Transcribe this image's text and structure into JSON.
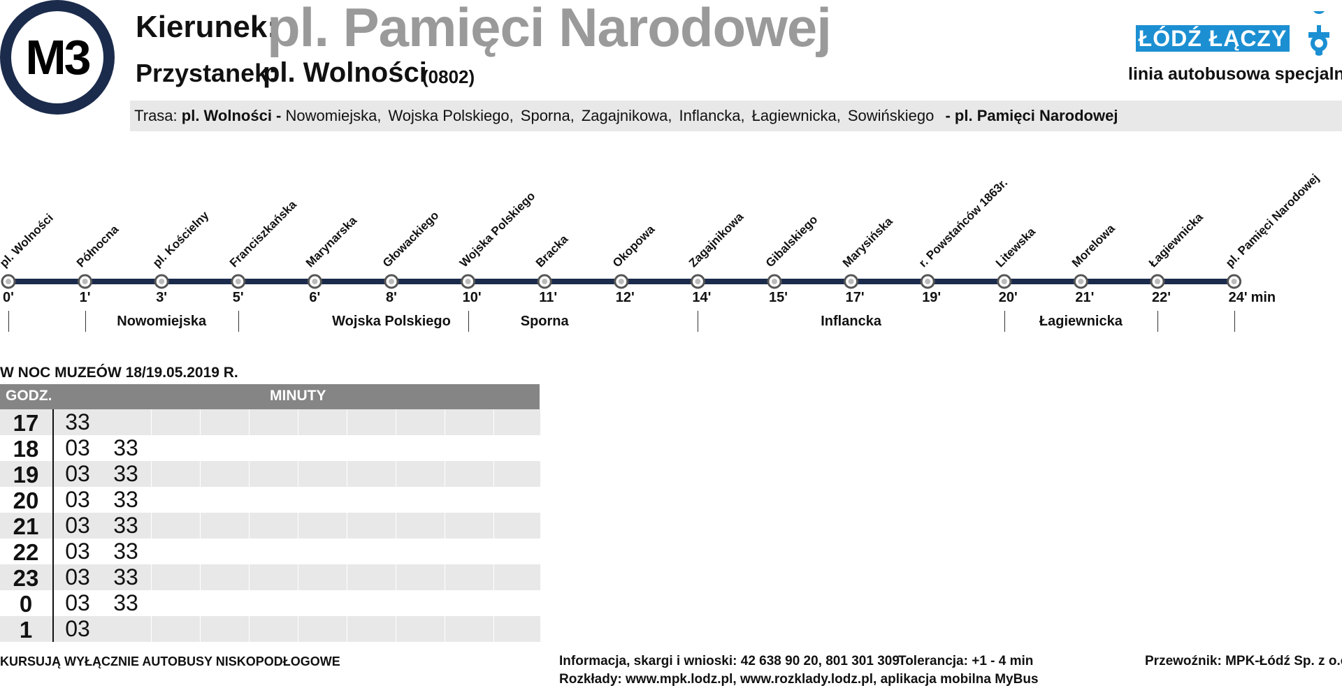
{
  "line": "M3",
  "header": {
    "direction_label": "Kierunek:",
    "direction_value": "pl. Pamięci Narodowej",
    "stop_label": "Przystanek:",
    "stop_value": "pl. Wolności",
    "stop_code": "(0802)"
  },
  "brand": {
    "logo_text": "ŁÓDŹ ŁĄCZY",
    "subtitle": "linia autobusowa specjalna",
    "accent": "#1b8fd2",
    "badge_color": "#1b2b4c"
  },
  "route": {
    "label": "Trasa:",
    "start": "pl. Wolności -",
    "streets": [
      "Nowomiejska,",
      "Wojska Polskiego,",
      "Sporna,",
      "Zagajnikowa,",
      "Inflancka,",
      "Łagiewnicka,",
      "Sowińskiego"
    ],
    "end": "- pl. Pamięci Narodowej"
  },
  "stops": [
    {
      "name": "pl. Wolności",
      "time": "0'"
    },
    {
      "name": "Północna",
      "time": "1'"
    },
    {
      "name": "pl. Kościelny",
      "time": "3'"
    },
    {
      "name": "Franciszkańska",
      "time": "5'"
    },
    {
      "name": "Marynarska",
      "time": "6'"
    },
    {
      "name": "Głowackiego",
      "time": "8'"
    },
    {
      "name": "Wojska Polskiego",
      "time": "10'"
    },
    {
      "name": "Bracka",
      "time": "11'"
    },
    {
      "name": "Okopowa",
      "time": "12'"
    },
    {
      "name": "Zagajnikowa",
      "time": "14'"
    },
    {
      "name": "Gibalskiego",
      "time": "15'"
    },
    {
      "name": "Marysińska",
      "time": "17'"
    },
    {
      "name": "r. Powstańców 1863r.",
      "time": "19'"
    },
    {
      "name": "Litewska",
      "time": "20'"
    },
    {
      "name": "Morelowa",
      "time": "21'"
    },
    {
      "name": "Łagiewnicka",
      "time": "22'"
    },
    {
      "name": "pl. Pamięci Narodowej",
      "time": "24'"
    }
  ],
  "time_unit": "min",
  "street_segments": [
    "Nowomiejska",
    "Wojska Polskiego",
    "Sporna",
    "Inflancka",
    "Łagiewnicka"
  ],
  "timetable": {
    "title": "W NOC MUZEÓW 18/19.05.2019 R.",
    "hour_header": "GODZ.",
    "minutes_header": "MINUTY",
    "rows": [
      {
        "hour": "17",
        "minutes": [
          "33"
        ]
      },
      {
        "hour": "18",
        "minutes": [
          "03",
          "33"
        ]
      },
      {
        "hour": "19",
        "minutes": [
          "03",
          "33"
        ]
      },
      {
        "hour": "20",
        "minutes": [
          "03",
          "33"
        ]
      },
      {
        "hour": "21",
        "minutes": [
          "03",
          "33"
        ]
      },
      {
        "hour": "22",
        "minutes": [
          "03",
          "33"
        ]
      },
      {
        "hour": "23",
        "minutes": [
          "03",
          "33"
        ]
      },
      {
        "hour": "0",
        "minutes": [
          "03",
          "33"
        ]
      },
      {
        "hour": "1",
        "minutes": [
          "03"
        ]
      }
    ]
  },
  "footer": {
    "note": "KURSUJĄ WYŁĄCZNIE AUTOBUSY NISKOPODŁOGOWE",
    "info": "Informacja, skargi i wnioski: 42 638 90 20, 801 301 309",
    "tolerance": "Tolerancja: +1 - 4 min",
    "schedules": "Rozkłady: www.mpk.lodz.pl, www.rozklady.lodz.pl, aplikacja mobilna MyBus",
    "operator": "Przewoźnik: MPK-Łódź Sp. z o.o."
  }
}
